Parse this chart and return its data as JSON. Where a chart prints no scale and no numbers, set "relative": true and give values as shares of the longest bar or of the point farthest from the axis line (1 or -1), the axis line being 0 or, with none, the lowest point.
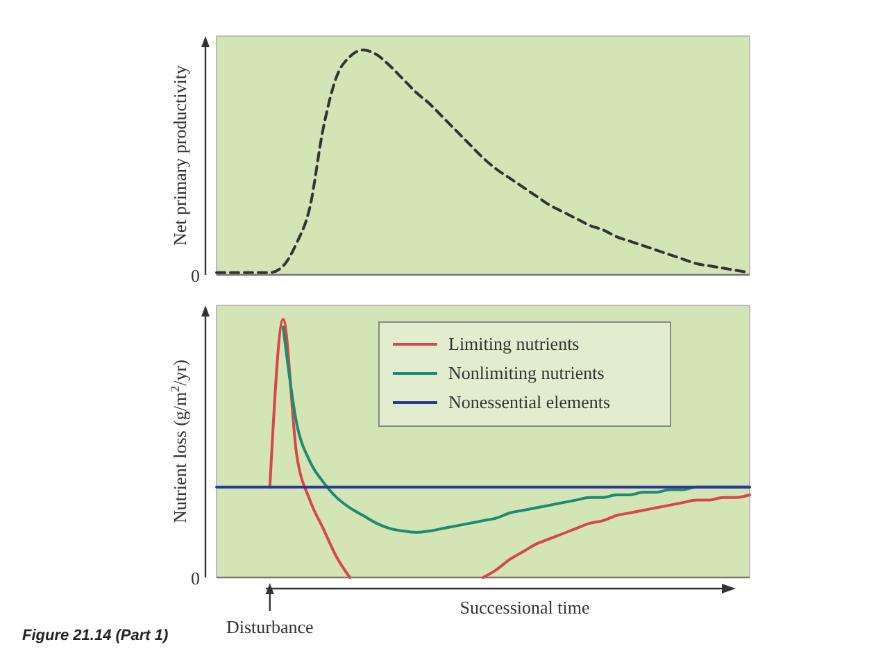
{
  "chart_data": [
    {
      "type": "line",
      "ylabel": "Net primary productivity",
      "relative": true,
      "categories": [
        null,
        null,
        null,
        null,
        null,
        null,
        null,
        null,
        null,
        null,
        null,
        null,
        null,
        null,
        null,
        null,
        null,
        null,
        null,
        null,
        null,
        null,
        null,
        null,
        null,
        null,
        null,
        null,
        null,
        null,
        null,
        null,
        null,
        null,
        null,
        null,
        null,
        null,
        null,
        null,
        null
      ],
      "series": [
        {
          "color": "#333333",
          "line_style": "dashed",
          "values": [
            0.01,
            0.01,
            0.01,
            0.01,
            0.01,
            0.04,
            0.14,
            0.3,
            0.65,
            0.88,
            0.97,
            1,
            0.98,
            0.93,
            0.87,
            0.81,
            0.76,
            0.7,
            0.64,
            0.58,
            0.52,
            0.47,
            0.43,
            0.39,
            0.35,
            0.31,
            0.28,
            0.25,
            0.22,
            0.2,
            0.17,
            0.15,
            0.13,
            0.11,
            0.09,
            0.07,
            0.05,
            0.04,
            0.03,
            0.02,
            0.01
          ]
        }
      ],
      "annotations": [
        "0"
      ],
      "marker": "none",
      "legend": false
    },
    {
      "type": "line",
      "ylabel": "Nutrient loss (g/m$^{2}$/yr)",
      "xlabel": "Successional time",
      "relative": true,
      "categories": [
        null,
        null,
        null,
        null,
        null,
        null,
        null,
        null,
        null,
        null,
        null,
        null,
        null,
        null,
        null,
        null,
        null,
        null,
        null,
        null,
        null,
        null,
        null,
        null,
        null,
        null,
        null,
        null,
        null,
        null,
        null,
        null,
        null,
        null,
        null,
        null,
        null,
        null,
        null,
        null,
        null
      ],
      "series": [
        {
          "name": "Limiting nutrients",
          "color": "#d9464a",
          "values": [
            null,
            null,
            null,
            null,
            0.35,
            1,
            0.48,
            0.3,
            0.19,
            0.08,
            0,
            null,
            null,
            null,
            null,
            null,
            null,
            null,
            null,
            null,
            0,
            0.03,
            0.07,
            0.1,
            0.13,
            0.15,
            0.17,
            0.19,
            0.21,
            0.22,
            0.24,
            0.25,
            0.26,
            0.27,
            0.28,
            0.29,
            0.3,
            0.3,
            0.31,
            0.31,
            0.32
          ]
        },
        {
          "name": "Nonlimiting nutrients",
          "color": "#1e8a72",
          "values": [
            null,
            null,
            null,
            null,
            null,
            0.97,
            0.6,
            0.45,
            0.37,
            0.31,
            0.27,
            0.24,
            0.21,
            0.19,
            0.18,
            0.175,
            0.18,
            0.19,
            0.2,
            0.21,
            0.22,
            0.23,
            0.25,
            0.26,
            0.27,
            0.28,
            0.29,
            0.3,
            0.31,
            0.31,
            0.32,
            0.32,
            0.33,
            0.33,
            0.34,
            0.34,
            0.35,
            0.35,
            0.35,
            0.35,
            0.35
          ]
        },
        {
          "name": "Nonessential elements",
          "color": "#2b3a9a",
          "values": [
            0.35,
            0.35,
            0.35,
            0.35,
            0.35,
            0.35,
            0.35,
            0.35,
            0.35,
            0.35,
            0.35,
            0.35,
            0.35,
            0.35,
            0.35,
            0.35,
            0.35,
            0.35,
            0.35,
            0.35,
            0.35,
            0.35,
            0.35,
            0.35,
            0.35,
            0.35,
            0.35,
            0.35,
            0.35,
            0.35,
            0.35,
            0.35,
            0.35,
            0.35,
            0.35,
            0.35,
            0.35,
            0.35,
            0.35,
            0.35,
            0.35
          ]
        }
      ],
      "annotations": [
        "0",
        "Disturbance",
        "Figure 21.14 (Part 1)"
      ],
      "marker": "none",
      "legend": "top"
    }
  ]
}
